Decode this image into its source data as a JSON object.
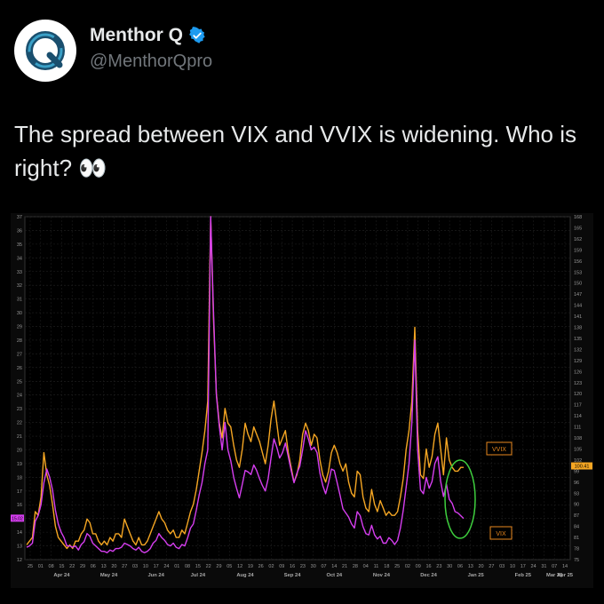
{
  "author": {
    "display_name": "Menthor Q",
    "handle": "@MenthorQpro",
    "verified_color": "#1d9bf0"
  },
  "tweet": {
    "text": "The spread between VIX and VVIX is widening. Who is right? 👀"
  },
  "chart_data": {
    "type": "line",
    "title": "",
    "x_tick_labels": [
      "25",
      "01",
      "08",
      "15",
      "22",
      "29",
      "06",
      "13",
      "20",
      "27",
      "03",
      "10",
      "17",
      "24",
      "01",
      "08",
      "15",
      "22",
      "29",
      "05",
      "12",
      "19",
      "26",
      "02",
      "09",
      "16",
      "23",
      "30",
      "07",
      "14",
      "21",
      "28",
      "04",
      "11",
      "18",
      "25",
      "02",
      "09",
      "16",
      "23",
      "30",
      "06",
      "13",
      "20",
      "27",
      "03",
      "10",
      "17",
      "24",
      "31",
      "07",
      "14"
    ],
    "x_month_labels": [
      "Apr 24",
      "May 24",
      "Jun 24",
      "Jul 24",
      "Aug 24",
      "Sep 24",
      "Oct 24",
      "Nov 24",
      "Dec 24",
      "Jan 25",
      "Feb 25",
      "Mar 25",
      "Apr 25"
    ],
    "left_axis": {
      "min": 12,
      "max": 37,
      "ticks": [
        12,
        13,
        14,
        15,
        16,
        17,
        18,
        19,
        20,
        21,
        22,
        23,
        24,
        25,
        26,
        27,
        28,
        29,
        30,
        31,
        32,
        33,
        34,
        35,
        36,
        37
      ]
    },
    "right_axis": {
      "min": 75,
      "max": 168,
      "ticks": [
        75,
        78,
        81,
        84,
        87,
        90,
        93,
        96,
        99,
        102,
        105,
        108,
        111,
        114,
        117,
        120,
        123,
        126,
        129,
        132,
        135,
        138,
        141,
        144,
        147,
        150,
        153,
        156,
        159,
        162,
        165,
        168
      ]
    },
    "grid": true,
    "series": [
      {
        "name": "VVIX",
        "axis": "right",
        "color": "#f5a623",
        "values": [
          79,
          80,
          81,
          88,
          87,
          92,
          104,
          98,
          95,
          90,
          84,
          81,
          80,
          79,
          78,
          79,
          78,
          80,
          80,
          82,
          83,
          86,
          85,
          82,
          82,
          80,
          79,
          80,
          79,
          81,
          80,
          82,
          82,
          81,
          86,
          84,
          82,
          80,
          79,
          81,
          79,
          79,
          80,
          82,
          84,
          86,
          88,
          86,
          85,
          83,
          82,
          83,
          81,
          81,
          83,
          82,
          85,
          88,
          90,
          94,
          99,
          104,
          110,
          118,
          168,
          140,
          120,
          112,
          108,
          116,
          112,
          111,
          106,
          102,
          100,
          105,
          112,
          109,
          107,
          111,
          109,
          107,
          104,
          101,
          106,
          113,
          118,
          112,
          106,
          108,
          110,
          104,
          100,
          96,
          98,
          102,
          109,
          112,
          110,
          106,
          109,
          108,
          102,
          98,
          96,
          99,
          104,
          106,
          104,
          101,
          99,
          101,
          96,
          93,
          92,
          99,
          98,
          92,
          89,
          88,
          94,
          90,
          88,
          91,
          89,
          87,
          88,
          87,
          87,
          88,
          92,
          97,
          105,
          110,
          118,
          138,
          110,
          98,
          97,
          105,
          100,
          103,
          109,
          112,
          105,
          98,
          108,
          102,
          100,
          99,
          99,
          100,
          100
        ]
      },
      {
        "name": "VIX",
        "axis": "left",
        "color": "#d63ef0",
        "values": [
          12.9,
          13,
          13.2,
          14.8,
          15.2,
          16,
          17.6,
          18.6,
          18,
          17.1,
          15.6,
          14.6,
          14,
          13.6,
          13,
          13,
          12.9,
          13,
          12.7,
          13.1,
          13.3,
          13.9,
          13.7,
          13.2,
          13,
          12.8,
          12.6,
          12.6,
          12.5,
          12.7,
          12.6,
          12.8,
          12.8,
          12.9,
          13.2,
          13.1,
          13,
          12.8,
          12.7,
          12.9,
          12.6,
          12.5,
          12.6,
          12.8,
          13.2,
          13.4,
          13.9,
          13.6,
          13.4,
          13.1,
          13,
          13.2,
          12.9,
          12.8,
          13.1,
          13,
          13.6,
          14.3,
          14.6,
          15.6,
          16.7,
          17.6,
          19,
          20,
          37,
          30,
          24,
          21.7,
          20,
          22,
          20,
          19.2,
          18,
          17.2,
          16.5,
          17.5,
          18.5,
          18.4,
          18.2,
          18.9,
          18.5,
          17.9,
          17.4,
          17,
          17.9,
          19.4,
          20.8,
          20.2,
          19.4,
          19.8,
          20.5,
          19.5,
          18.5,
          17.6,
          18.3,
          18.8,
          20,
          21.4,
          20.8,
          20,
          20.2,
          19.8,
          18.3,
          17.4,
          16.8,
          17.6,
          18.6,
          18.5,
          17.6,
          16.7,
          15.7,
          15.4,
          15.1,
          14.6,
          14.3,
          15.5,
          15.2,
          14.4,
          13.9,
          13.8,
          14.5,
          13.8,
          13.5,
          13.7,
          13.2,
          13.2,
          13.6,
          13.4,
          13.1,
          13.4,
          14.3,
          15.6,
          17.3,
          19,
          22,
          28,
          20,
          17.1,
          16.8,
          18,
          17.2,
          17.7,
          19,
          19.5,
          17.7,
          16.6,
          17.5,
          16.4,
          16.1,
          15.5,
          15.4,
          15.2,
          15
        ]
      }
    ],
    "annotations": [
      {
        "text": "VVIX",
        "near_series": "VVIX"
      },
      {
        "text": "VIX",
        "near_series": "VIX"
      },
      {
        "text": "100.41",
        "type": "price-tag"
      },
      {
        "text": "15.02",
        "type": "price-tag"
      }
    ]
  }
}
